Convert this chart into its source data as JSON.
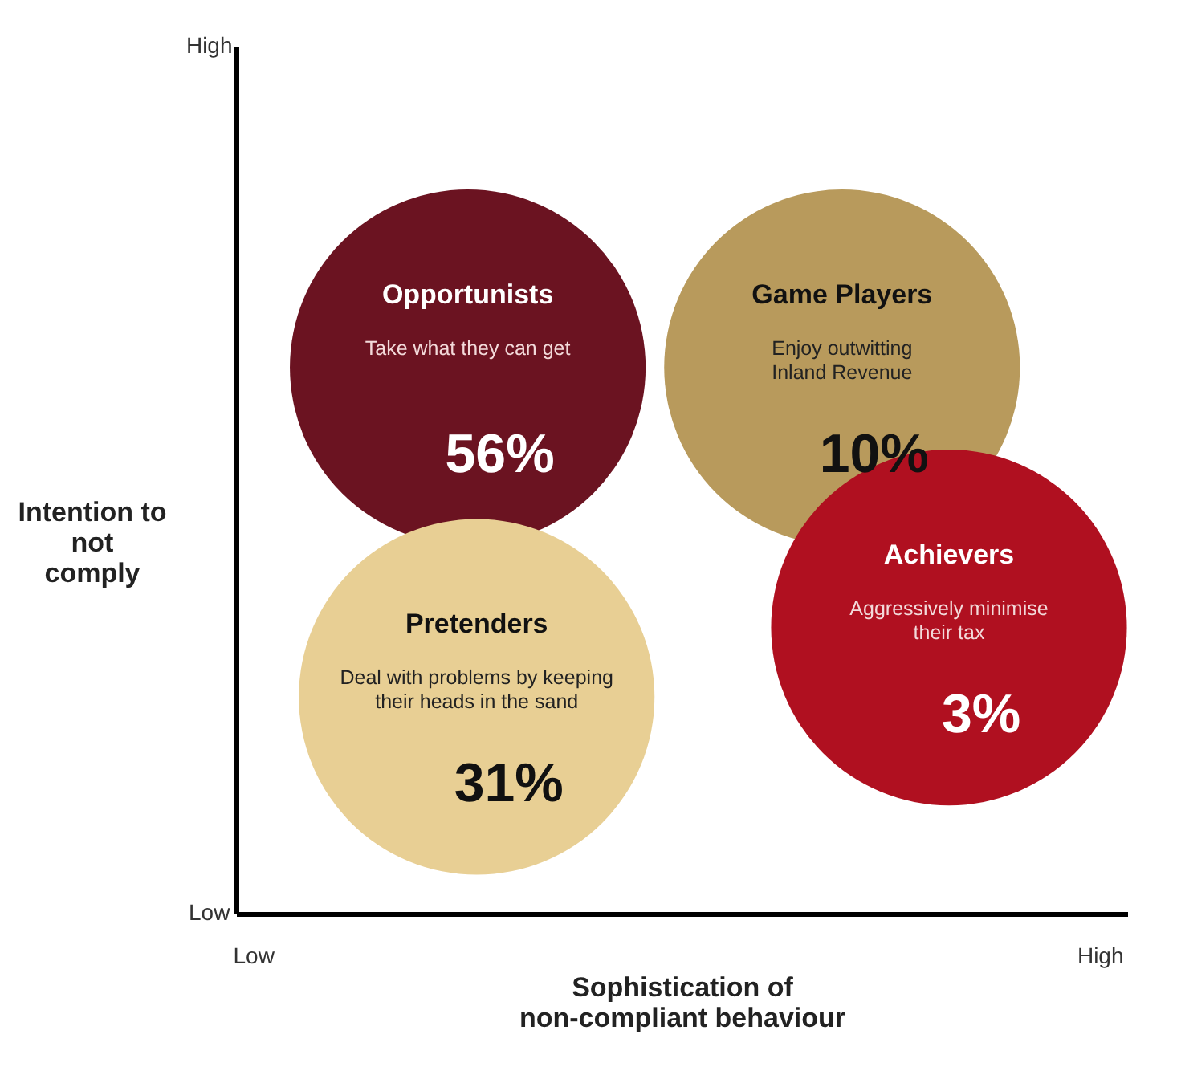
{
  "chart_data": {
    "type": "other",
    "xlabel": "Sophistication of\nnon-compliant behaviour",
    "ylabel": "Intention to\nnot\ncomply",
    "categories": [
      "Opportunists",
      "Game Players",
      "Achievers",
      "Pretenders"
    ],
    "values": [
      56,
      10,
      3,
      31
    ],
    "value_labels": [
      "56%",
      "10%",
      "3%",
      "31%"
    ],
    "colors": [
      "#6b1321",
      "#b89a5c",
      "#b01020",
      "#e8cf94"
    ],
    "annotations": [
      "Take what they can get",
      "Enjoy outwitting\nInland Revenue",
      "Aggressively minimise\ntheir tax",
      "Deal with problems by keeping\ntheir heads in the sand",
      "High",
      "Low",
      "Low",
      "High"
    ]
  }
}
